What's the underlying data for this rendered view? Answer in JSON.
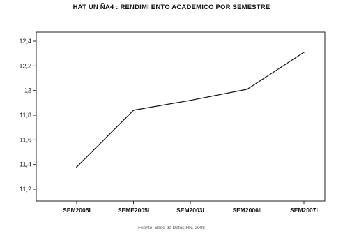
{
  "chart_data": {
    "type": "line",
    "title": "HAT UN ÑA4 : RENDIMI ENTO ACADEMICO POR SEMESTRE",
    "source": "Fuente: Base de Datos HN. 2008",
    "categories": [
      "SEM2005I",
      "SEME2005I",
      "SEM2003I",
      "SEM2006II",
      "SEM2007I"
    ],
    "series": [
      {
        "values": [
          11.38,
          11.84,
          11.92,
          12.01,
          12.31
        ],
        "color": "#111111"
      }
    ],
    "yticks": [
      "11,2",
      "11,4",
      "11,6",
      "11,8",
      "12",
      "12,2",
      "12,4"
    ],
    "ylim": [
      11.2,
      12.4
    ],
    "grid": false,
    "legend": "none"
  }
}
